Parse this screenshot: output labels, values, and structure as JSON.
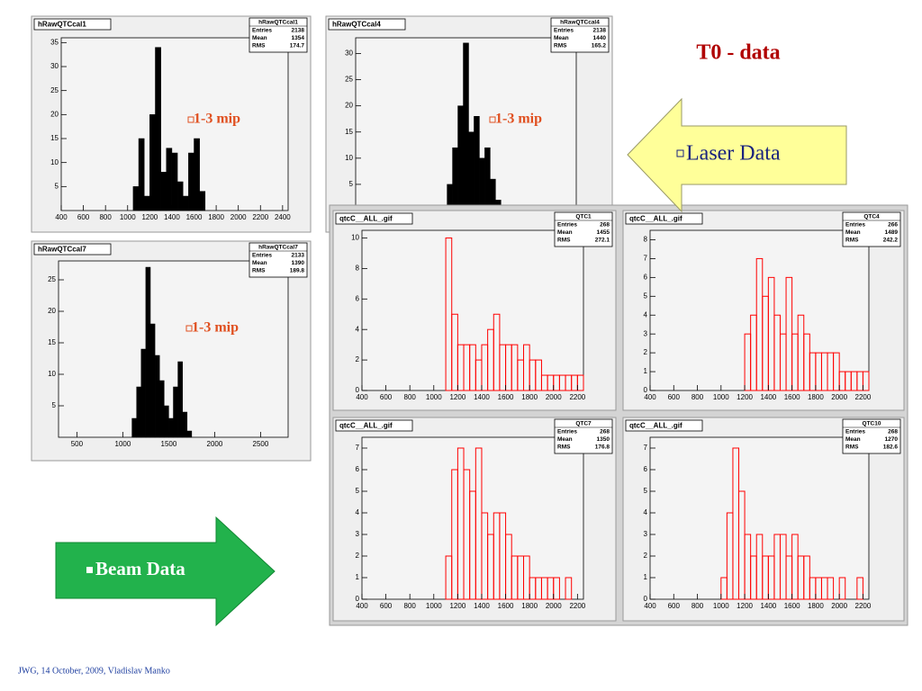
{
  "heading": "T0 - data",
  "laser_label": "Laser Data",
  "beam_label": "Beam Data",
  "mip_labels": [
    "1-3 mip",
    "1-3 mip",
    "1-3 mip"
  ],
  "footer": "JWG, 14 October, 2009, Vladislav Manko",
  "panels": [
    {
      "type": "histogram",
      "title": "hRawQTCcal1",
      "stats_title": "hRawQTCcal1",
      "stats": [
        {
          "name": "Entries",
          "value": 2138
        },
        {
          "name": "Mean",
          "value": 1354
        },
        {
          "name": "RMS",
          "value": 174.7
        }
      ],
      "xlim": [
        400,
        2450
      ],
      "xticks": [
        400,
        600,
        800,
        1000,
        1200,
        1400,
        1600,
        1800,
        2000,
        2200,
        2400
      ],
      "ylim": [
        0,
        36
      ],
      "yticks": [
        5,
        10,
        15,
        20,
        25,
        30,
        35
      ],
      "color": "#000000",
      "bins": [
        1050,
        1100,
        1150,
        1200,
        1250,
        1300,
        1350,
        1400,
        1450,
        1500,
        1550,
        1600,
        1650,
        1700
      ],
      "counts": [
        5,
        15,
        3,
        20,
        34,
        8,
        13,
        12,
        6,
        3,
        12,
        15,
        4
      ]
    },
    {
      "type": "histogram",
      "title": "hRawQTCcal4",
      "stats_title": "hRawQTCcal4",
      "stats": [
        {
          "name": "Entries",
          "value": 2138
        },
        {
          "name": "Mean",
          "value": 1440
        },
        {
          "name": "RMS",
          "value": 165.2
        }
      ],
      "xlim": [
        400,
        2450
      ],
      "xticks": [],
      "ylim": [
        0,
        33
      ],
      "yticks": [
        5,
        10,
        15,
        20,
        25,
        30
      ],
      "color": "#000000",
      "bins": [
        1250,
        1300,
        1350,
        1400,
        1450,
        1500,
        1550,
        1600,
        1650,
        1700,
        1750
      ],
      "counts": [
        5,
        12,
        20,
        32,
        15,
        18,
        10,
        12,
        6,
        2
      ]
    },
    {
      "type": "histogram",
      "title": "hRawQTCcal7",
      "stats_title": "hRawQTCcal7",
      "stats": [
        {
          "name": "Entries",
          "value": 2133
        },
        {
          "name": "Mean",
          "value": 1390
        },
        {
          "name": "RMS",
          "value": 189.8
        }
      ],
      "xlim": [
        300,
        2800
      ],
      "xticks": [
        500,
        1000,
        1500,
        2000,
        2500
      ],
      "ylim": [
        0,
        28
      ],
      "yticks": [
        5,
        10,
        15,
        20,
        25
      ],
      "color": "#000000",
      "bins": [
        1100,
        1150,
        1200,
        1250,
        1300,
        1350,
        1400,
        1450,
        1500,
        1550,
        1600,
        1650,
        1700,
        1750
      ],
      "counts": [
        3,
        8,
        14,
        27,
        18,
        13,
        9,
        5,
        3,
        8,
        12,
        4,
        1
      ]
    },
    {
      "type": "histogram",
      "title": "qtcC__ALL_.gif",
      "stats_title": "QTC1",
      "stats": [
        {
          "name": "Entries",
          "value": 268
        },
        {
          "name": "Mean",
          "value": 1455
        },
        {
          "name": "RMS",
          "value": 272.1
        }
      ],
      "xlim": [
        400,
        2250
      ],
      "xticks": [
        400,
        600,
        800,
        1000,
        1200,
        1400,
        1600,
        1800,
        2000,
        2200
      ],
      "ylim": [
        0,
        10.5
      ],
      "yticks": [
        0,
        2,
        4,
        6,
        8,
        10
      ],
      "color": "#ff0000",
      "bins": [
        1100,
        1150,
        1200,
        1250,
        1300,
        1350,
        1400,
        1450,
        1500,
        1550,
        1600,
        1650,
        1700,
        1750,
        1800,
        1850,
        1900,
        1950,
        2000,
        2050,
        2100,
        2150,
        2200,
        2250
      ],
      "counts": [
        10,
        5,
        3,
        3,
        3,
        2,
        3,
        4,
        5,
        3,
        3,
        3,
        2,
        3,
        2,
        2,
        1,
        1,
        1,
        1,
        1,
        1,
        1
      ]
    },
    {
      "type": "histogram",
      "title": "qtcC__ALL_.gif",
      "stats_title": "QTC4",
      "stats": [
        {
          "name": "Entries",
          "value": 266
        },
        {
          "name": "Mean",
          "value": 1489
        },
        {
          "name": "RMS",
          "value": 242.2
        }
      ],
      "xlim": [
        400,
        2250
      ],
      "xticks": [
        400,
        600,
        800,
        1000,
        1200,
        1400,
        1600,
        1800,
        2000,
        2200
      ],
      "ylim": [
        0,
        8.5
      ],
      "yticks": [
        0,
        1,
        2,
        3,
        4,
        5,
        6,
        7,
        8
      ],
      "color": "#ff0000",
      "bins": [
        1150,
        1200,
        1250,
        1300,
        1350,
        1400,
        1450,
        1500,
        1550,
        1600,
        1650,
        1700,
        1750,
        1800,
        1850,
        1900,
        1950,
        2000,
        2050,
        2100,
        2150,
        2200,
        2250
      ],
      "counts": [
        0,
        3,
        4,
        7,
        5,
        6,
        4,
        3,
        6,
        3,
        4,
        3,
        2,
        2,
        2,
        2,
        2,
        1,
        1,
        1,
        1,
        1
      ]
    },
    {
      "type": "histogram",
      "title": "qtcC__ALL_.gif",
      "stats_title": "QTC7",
      "stats": [
        {
          "name": "Entries",
          "value": 268
        },
        {
          "name": "Mean",
          "value": 1350
        },
        {
          "name": "RMS",
          "value": 176.8
        }
      ],
      "xlim": [
        400,
        2250
      ],
      "xticks": [
        400,
        600,
        800,
        1000,
        1200,
        1400,
        1600,
        1800,
        2000,
        2200
      ],
      "ylim": [
        0,
        7.5
      ],
      "yticks": [
        0,
        1,
        2,
        3,
        4,
        5,
        6,
        7
      ],
      "color": "#ff0000",
      "bins": [
        1100,
        1150,
        1200,
        1250,
        1300,
        1350,
        1400,
        1450,
        1500,
        1550,
        1600,
        1650,
        1700,
        1750,
        1800,
        1850,
        1900,
        1950,
        2000,
        2050,
        2100,
        2150,
        2200
      ],
      "counts": [
        2,
        6,
        7,
        6,
        5,
        7,
        4,
        3,
        4,
        4,
        3,
        2,
        2,
        2,
        1,
        1,
        1,
        1,
        1,
        0,
        1,
        0
      ]
    },
    {
      "type": "histogram",
      "title": "qtcC__ALL_.gif",
      "stats_title": "QTC10",
      "stats": [
        {
          "name": "Entries",
          "value": 268
        },
        {
          "name": "Mean",
          "value": 1270
        },
        {
          "name": "RMS",
          "value": 182.6
        }
      ],
      "xlim": [
        400,
        2250
      ],
      "xticks": [
        400,
        600,
        800,
        1000,
        1200,
        1400,
        1600,
        1800,
        2000,
        2200
      ],
      "ylim": [
        0,
        7.5
      ],
      "yticks": [
        0,
        1,
        2,
        3,
        4,
        5,
        6,
        7
      ],
      "color": "#ff0000",
      "bins": [
        1000,
        1050,
        1100,
        1150,
        1200,
        1250,
        1300,
        1350,
        1400,
        1450,
        1500,
        1550,
        1600,
        1650,
        1700,
        1750,
        1800,
        1850,
        1900,
        1950,
        2000,
        2050,
        2100,
        2150,
        2200
      ],
      "counts": [
        1,
        4,
        7,
        5,
        3,
        2,
        3,
        2,
        2,
        3,
        3,
        2,
        3,
        2,
        2,
        1,
        1,
        1,
        1,
        0,
        1,
        0,
        0,
        1
      ]
    }
  ]
}
